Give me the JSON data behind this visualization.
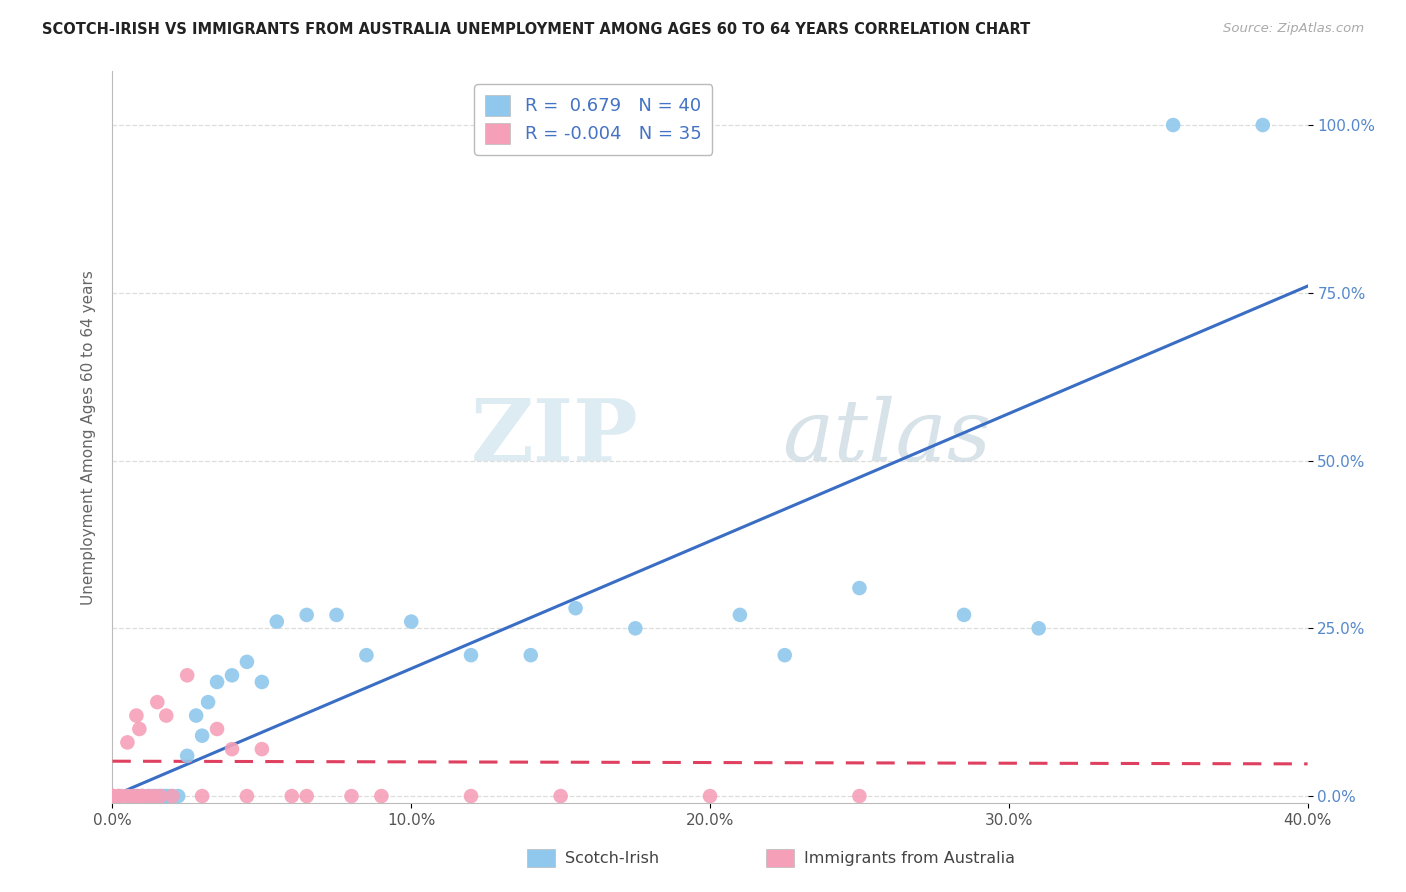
{
  "title": "SCOTCH-IRISH VS IMMIGRANTS FROM AUSTRALIA UNEMPLOYMENT AMONG AGES 60 TO 64 YEARS CORRELATION CHART",
  "source": "Source: ZipAtlas.com",
  "ylabel": "Unemployment Among Ages 60 to 64 years",
  "xmin": 0.0,
  "xmax": 0.4,
  "ymin": -0.01,
  "ymax": 1.08,
  "xtick_labels": [
    "0.0%",
    "10.0%",
    "20.0%",
    "30.0%",
    "40.0%"
  ],
  "xtick_values": [
    0.0,
    0.1,
    0.2,
    0.3,
    0.4
  ],
  "ytick_labels": [
    "0.0%",
    "25.0%",
    "50.0%",
    "75.0%",
    "100.0%"
  ],
  "ytick_values": [
    0.0,
    0.25,
    0.5,
    0.75,
    1.0
  ],
  "scotch_irish_R": 0.679,
  "scotch_irish_N": 40,
  "australia_R": -0.004,
  "australia_N": 35,
  "scotch_irish_color": "#8FC8EC",
  "australia_color": "#F5A0B8",
  "trendline_scotch_color": "#3A6EC4",
  "trendline_australia_color": "#E04060",
  "background_color": "#FFFFFF",
  "watermark_zip": "ZIP",
  "watermark_atlas": "atlas",
  "scotch_irish_trendline": [
    [
      0.0,
      0.0
    ],
    [
      0.4,
      0.76
    ]
  ],
  "australia_trendline": [
    [
      0.0,
      0.052
    ],
    [
      0.4,
      0.048
    ]
  ],
  "scotch_irish_x": [
    0.002,
    0.005,
    0.007,
    0.008,
    0.009,
    0.01,
    0.012,
    0.013,
    0.014,
    0.015,
    0.016,
    0.017,
    0.018,
    0.019,
    0.02,
    0.022,
    0.025,
    0.028,
    0.03,
    0.032,
    0.035,
    0.04,
    0.045,
    0.05,
    0.055,
    0.065,
    0.075,
    0.085,
    0.1,
    0.12,
    0.14,
    0.155,
    0.175,
    0.21,
    0.225,
    0.25,
    0.285,
    0.31,
    0.355,
    0.385
  ],
  "scotch_irish_y": [
    0.0,
    0.0,
    0.0,
    0.0,
    0.0,
    0.0,
    0.0,
    0.0,
    0.0,
    0.0,
    0.0,
    0.0,
    0.0,
    0.0,
    0.0,
    0.0,
    0.06,
    0.12,
    0.09,
    0.14,
    0.17,
    0.18,
    0.2,
    0.17,
    0.26,
    0.27,
    0.27,
    0.21,
    0.26,
    0.21,
    0.21,
    0.28,
    0.25,
    0.27,
    0.21,
    0.31,
    0.27,
    0.25,
    1.0,
    1.0
  ],
  "australia_x": [
    0.0,
    0.0,
    0.0,
    0.0,
    0.0,
    0.002,
    0.003,
    0.005,
    0.005,
    0.007,
    0.008,
    0.008,
    0.009,
    0.01,
    0.01,
    0.012,
    0.014,
    0.015,
    0.016,
    0.018,
    0.02,
    0.025,
    0.03,
    0.035,
    0.04,
    0.045,
    0.05,
    0.06,
    0.065,
    0.08,
    0.09,
    0.12,
    0.15,
    0.2,
    0.25
  ],
  "australia_y": [
    0.0,
    0.0,
    0.0,
    0.0,
    0.0,
    0.0,
    0.0,
    0.0,
    0.08,
    0.0,
    0.0,
    0.12,
    0.1,
    0.0,
    0.0,
    0.0,
    0.0,
    0.14,
    0.0,
    0.12,
    0.0,
    0.18,
    0.0,
    0.1,
    0.07,
    0.0,
    0.07,
    0.0,
    0.0,
    0.0,
    0.0,
    0.0,
    0.0,
    0.0,
    0.0
  ]
}
